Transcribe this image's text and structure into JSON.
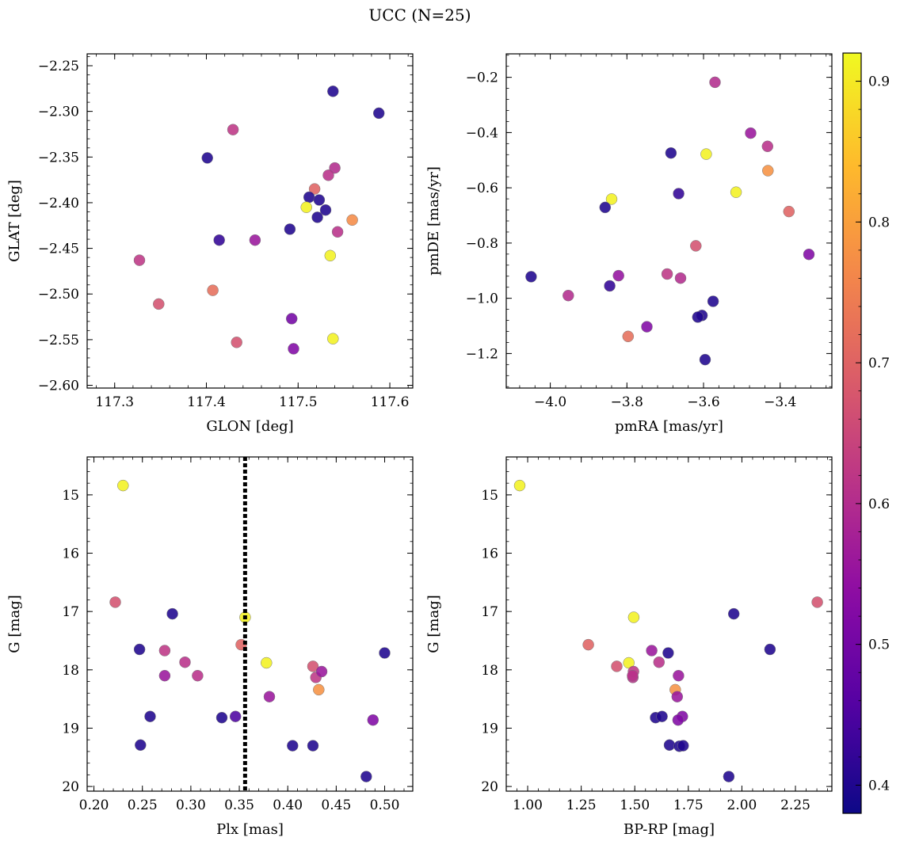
{
  "figure_title": "UCC (N=25)",
  "colorbar": {
    "min": 0.38,
    "max": 0.92,
    "ticks": [
      0.4,
      0.5,
      0.6,
      0.7,
      0.8,
      0.9
    ],
    "tick_labels": [
      "0.4",
      "0.5",
      "0.6",
      "0.7",
      "0.8",
      "0.9"
    ],
    "colormap": "plasma"
  },
  "chart_data": [
    {
      "type": "scatter",
      "title": "",
      "xlabel": "GLON [deg]",
      "ylabel": "GLAT [deg]",
      "xlim": [
        117.27,
        117.625
      ],
      "ylim": [
        -2.603,
        -2.237
      ],
      "xticks": [
        117.3,
        117.4,
        117.5,
        117.6
      ],
      "xtick_labels": [
        "117.3",
        "117.4",
        "117.5",
        "117.6"
      ],
      "yticks": [
        -2.25,
        -2.3,
        -2.35,
        -2.4,
        -2.45,
        -2.5,
        -2.55,
        -2.6
      ],
      "ytick_labels": [
        "−2.25",
        "−2.30",
        "−2.35",
        "−2.40",
        "−2.45",
        "−2.50",
        "−2.55",
        "−2.60"
      ],
      "x": [
        117.538,
        117.588,
        117.429,
        117.401,
        117.54,
        117.533,
        117.518,
        117.512,
        117.523,
        117.509,
        117.53,
        117.521,
        117.559,
        117.543,
        117.414,
        117.453,
        117.491,
        117.535,
        117.327,
        117.407,
        117.348,
        117.493,
        117.433,
        117.538,
        117.495
      ],
      "y": [
        -2.278,
        -2.302,
        -2.32,
        -2.351,
        -2.362,
        -2.37,
        -2.385,
        -2.394,
        -2.397,
        -2.405,
        -2.408,
        -2.416,
        -2.419,
        -2.432,
        -2.441,
        -2.441,
        -2.429,
        -2.458,
        -2.463,
        -2.496,
        -2.511,
        -2.527,
        -2.553,
        -2.549,
        -2.56
      ],
      "c": [
        0.4,
        0.4,
        0.62,
        0.4,
        0.6,
        0.61,
        0.7,
        0.4,
        0.4,
        0.91,
        0.4,
        0.4,
        0.77,
        0.61,
        0.42,
        0.56,
        0.4,
        0.91,
        0.62,
        0.72,
        0.67,
        0.5,
        0.67,
        0.91,
        0.52
      ]
    },
    {
      "type": "scatter",
      "title": "",
      "xlabel": "pmRA [mas/yr]",
      "ylabel": "pmDE [mas/yr]",
      "xlim": [
        -4.115,
        -3.265
      ],
      "ylim": [
        -1.325,
        -0.115
      ],
      "xticks": [
        -4.0,
        -3.8,
        -3.6,
        -3.4
      ],
      "xtick_labels": [
        "−4.0",
        "−3.8",
        "−3.6",
        "−3.4"
      ],
      "yticks": [
        -0.2,
        -0.4,
        -0.6,
        -0.8,
        -1.0,
        -1.2
      ],
      "ytick_labels": [
        "−0.2",
        "−0.4",
        "−0.6",
        "−0.8",
        "−1.0",
        "−1.2"
      ],
      "x": [
        -3.57,
        -3.477,
        -3.433,
        -3.685,
        -3.593,
        -3.432,
        -3.84,
        -3.665,
        -3.857,
        -3.515,
        -3.377,
        -3.62,
        -3.325,
        -4.05,
        -3.822,
        -3.695,
        -3.66,
        -3.845,
        -3.953,
        -3.575,
        -3.604,
        -3.615,
        -3.748,
        -3.797,
        -3.596
      ],
      "y": [
        -0.218,
        -0.402,
        -0.45,
        -0.474,
        -0.478,
        -0.538,
        -0.641,
        -0.621,
        -0.671,
        -0.616,
        -0.686,
        -0.81,
        -0.841,
        -0.922,
        -0.918,
        -0.912,
        -0.927,
        -0.955,
        -0.99,
        -1.011,
        -1.062,
        -1.068,
        -1.103,
        -1.138,
        -1.222
      ],
      "c": [
        0.6,
        0.56,
        0.61,
        0.4,
        0.91,
        0.78,
        0.91,
        0.42,
        0.4,
        0.91,
        0.7,
        0.67,
        0.52,
        0.4,
        0.55,
        0.62,
        0.6,
        0.42,
        0.6,
        0.4,
        0.4,
        0.4,
        0.52,
        0.72,
        0.4
      ]
    },
    {
      "type": "scatter",
      "title": "",
      "xlabel": "Plx [mas]",
      "ylabel": "G [mag]",
      "xlim": [
        0.193,
        0.529
      ],
      "ylim": [
        20.08,
        14.35
      ],
      "invert_y": true,
      "xticks": [
        0.2,
        0.25,
        0.3,
        0.35,
        0.4,
        0.45,
        0.5
      ],
      "xtick_labels": [
        "0.20",
        "0.25",
        "0.30",
        "0.35",
        "0.40",
        "0.45",
        "0.50"
      ],
      "yticks": [
        15,
        16,
        17,
        18,
        19,
        20
      ],
      "ytick_labels": [
        "15",
        "16",
        "17",
        "18",
        "19",
        "20"
      ],
      "vline": {
        "x": 0.356,
        "style": "dotted",
        "color": "#000000"
      },
      "x": [
        0.23,
        0.222,
        0.281,
        0.356,
        0.352,
        0.247,
        0.273,
        0.5,
        0.294,
        0.378,
        0.426,
        0.273,
        0.307,
        0.429,
        0.435,
        0.432,
        0.381,
        0.258,
        0.332,
        0.346,
        0.488,
        0.248,
        0.405,
        0.426,
        0.481
      ],
      "y": [
        14.84,
        16.84,
        17.04,
        17.1,
        17.57,
        17.65,
        17.67,
        17.71,
        17.87,
        17.88,
        17.94,
        18.1,
        18.1,
        18.13,
        18.03,
        18.34,
        18.46,
        18.8,
        18.82,
        18.8,
        18.86,
        19.29,
        19.3,
        19.3,
        19.83
      ],
      "c": [
        0.91,
        0.67,
        0.4,
        0.91,
        0.7,
        0.4,
        0.62,
        0.4,
        0.61,
        0.91,
        0.67,
        0.56,
        0.61,
        0.62,
        0.56,
        0.78,
        0.56,
        0.4,
        0.4,
        0.45,
        0.52,
        0.4,
        0.4,
        0.4,
        0.4
      ]
    },
    {
      "type": "scatter",
      "title": "",
      "xlabel": "BP-RP [mag]",
      "ylabel": "G [mag]",
      "xlim": [
        0.9,
        2.42
      ],
      "ylim": [
        20.08,
        14.35
      ],
      "invert_y": true,
      "xticks": [
        1.0,
        1.25,
        1.5,
        1.75,
        2.0,
        2.25
      ],
      "xtick_labels": [
        "1.00",
        "1.25",
        "1.50",
        "1.75",
        "2.00",
        "2.25"
      ],
      "yticks": [
        15,
        16,
        17,
        18,
        19,
        20
      ],
      "ytick_labels": [
        "15",
        "16",
        "17",
        "18",
        "19",
        "20"
      ],
      "x": [
        0.963,
        2.352,
        1.962,
        1.495,
        1.283,
        2.131,
        1.579,
        1.656,
        1.613,
        1.472,
        1.416,
        1.704,
        1.491,
        1.494,
        1.689,
        1.698,
        1.597,
        1.627,
        1.722,
        1.702,
        1.662,
        1.708,
        1.726,
        1.939,
        1.49
      ],
      "y": [
        14.84,
        16.84,
        17.04,
        17.1,
        17.57,
        17.65,
        17.67,
        17.71,
        17.87,
        17.88,
        17.94,
        18.1,
        18.13,
        18.03,
        18.34,
        18.46,
        18.82,
        18.8,
        18.8,
        18.86,
        19.29,
        19.31,
        19.3,
        19.83,
        18.1
      ],
      "c": [
        0.91,
        0.67,
        0.4,
        0.91,
        0.7,
        0.4,
        0.56,
        0.4,
        0.61,
        0.91,
        0.67,
        0.56,
        0.61,
        0.62,
        0.78,
        0.56,
        0.4,
        0.4,
        0.52,
        0.52,
        0.4,
        0.4,
        0.4,
        0.4,
        0.61
      ]
    }
  ]
}
